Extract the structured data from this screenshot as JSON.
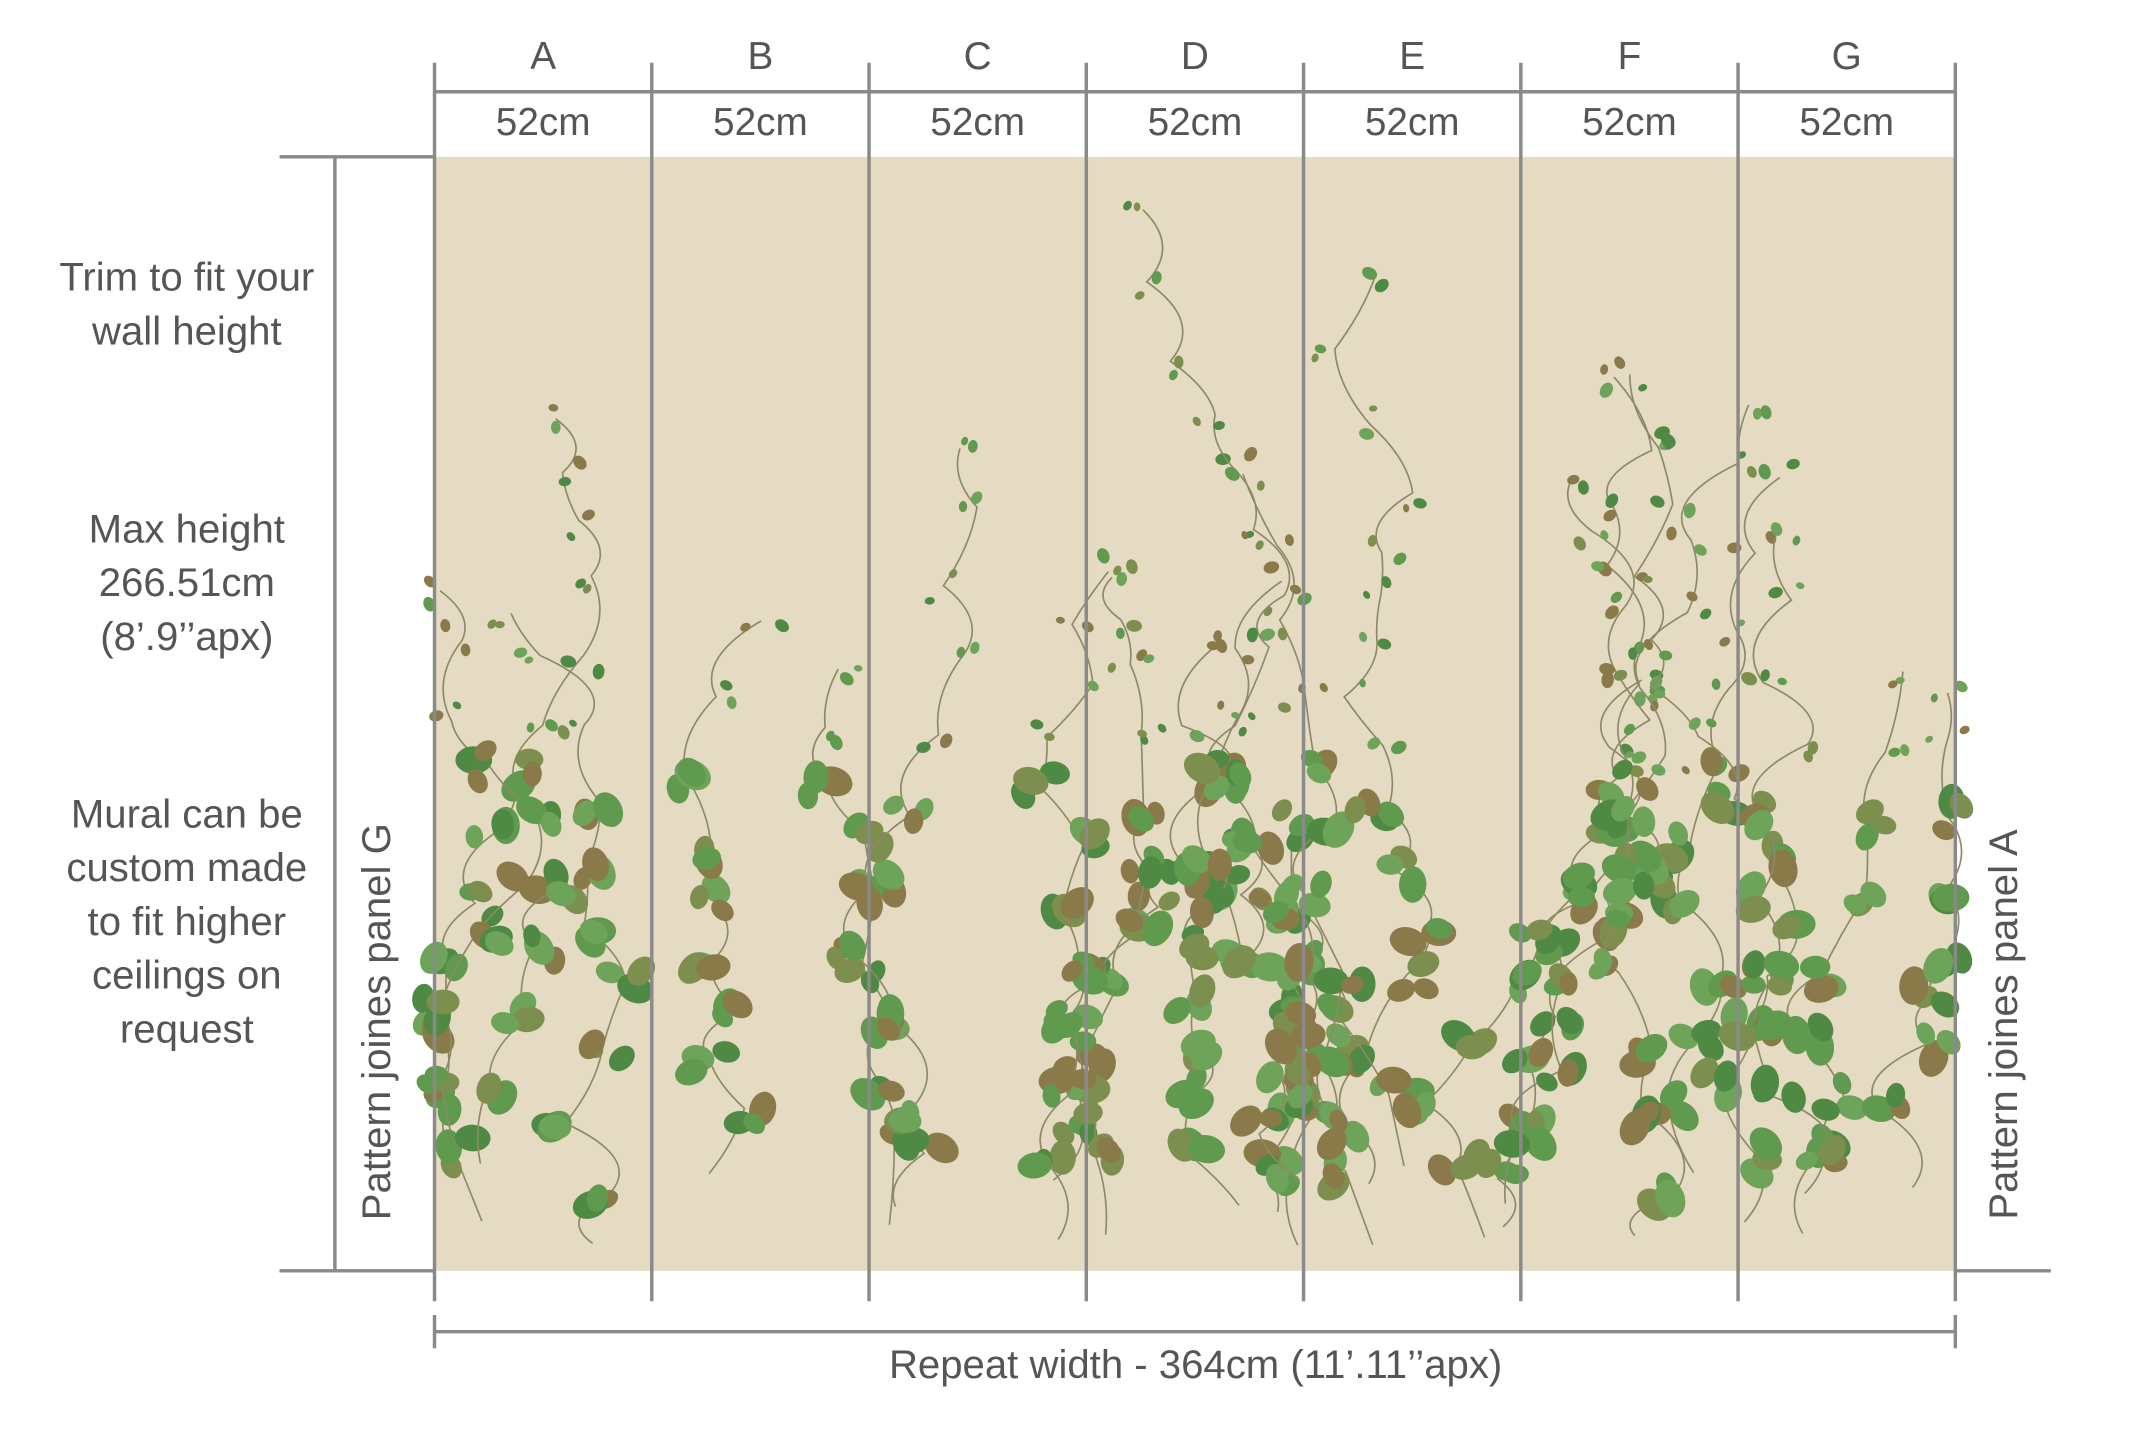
{
  "panels": [
    {
      "letter": "A",
      "width": "52cm"
    },
    {
      "letter": "B",
      "width": "52cm"
    },
    {
      "letter": "C",
      "width": "52cm"
    },
    {
      "letter": "D",
      "width": "52cm"
    },
    {
      "letter": "E",
      "width": "52cm"
    },
    {
      "letter": "F",
      "width": "52cm"
    },
    {
      "letter": "G",
      "width": "52cm"
    }
  ],
  "notes": {
    "trim": [
      "Trim to fit your",
      "wall height"
    ],
    "max_height": [
      "Max height",
      "266.51cm",
      "(8’.9’’apx)"
    ],
    "custom": [
      "Mural can be",
      "custom made",
      "to fit higher",
      "ceilings on",
      "request"
    ]
  },
  "left_join": "Pattern joines panel G",
  "right_join": "Pattern joines panel A",
  "repeat_width": "Repeat width - 364cm  (11’.11’’apx)"
}
